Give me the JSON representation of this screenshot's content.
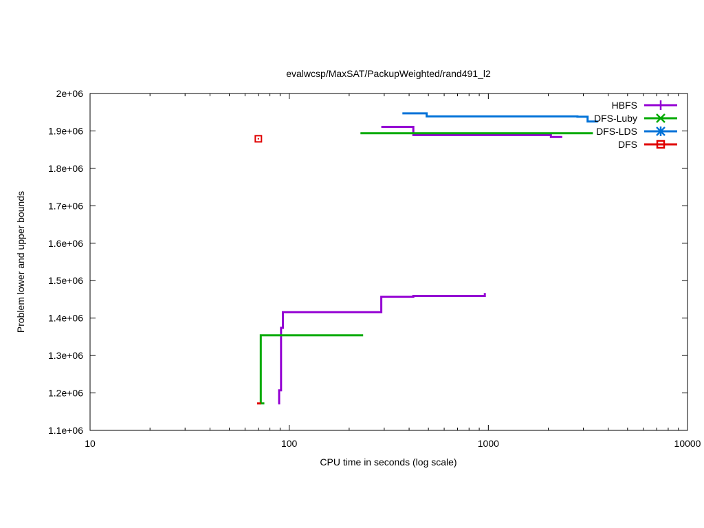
{
  "chart_data": {
    "type": "line",
    "title": "evalwcsp/MaxSAT/PackupWeighted/rand491_l2",
    "xlabel": "CPU time in seconds (log scale)",
    "ylabel": "Problem lower and upper bounds",
    "x_scale": "log",
    "xlim": [
      10,
      10000
    ],
    "ylim": [
      1100000,
      2000000
    ],
    "x_ticks": [
      10,
      100,
      1000,
      10000
    ],
    "x_tick_labels": [
      "10",
      "100",
      "1000",
      "10000"
    ],
    "y_ticks": [
      1100000,
      1200000,
      1300000,
      1400000,
      1500000,
      1600000,
      1700000,
      1800000,
      1900000,
      2000000
    ],
    "y_tick_labels": [
      "1.1e+06",
      "1.2e+06",
      "1.3e+06",
      "1.4e+06",
      "1.5e+06",
      "1.6e+06",
      "1.7e+06",
      "1.8e+06",
      "1.9e+06",
      "2e+06"
    ],
    "grid": false,
    "legend_position": "top-right",
    "series": [
      {
        "name": "HBFS",
        "color": "#9400d3",
        "marker": "plus",
        "lower": [
          [
            88,
            1172000
          ],
          [
            89,
            1172000
          ],
          [
            89,
            1207000
          ],
          [
            91,
            1207000
          ],
          [
            91,
            1374000
          ],
          [
            93,
            1374000
          ],
          [
            93,
            1416000
          ],
          [
            290,
            1416000
          ],
          [
            290,
            1457000
          ],
          [
            420,
            1457000
          ],
          [
            420,
            1459000
          ],
          [
            960,
            1459000
          ],
          [
            960,
            1467000
          ]
        ],
        "upper": [
          [
            290,
            1911000
          ],
          [
            420,
            1911000
          ],
          [
            420,
            1889000
          ],
          [
            2060,
            1889000
          ],
          [
            2060,
            1884000
          ],
          [
            2350,
            1884000
          ]
        ]
      },
      {
        "name": "DFS-Luby",
        "color": "#00aa00",
        "marker": "x",
        "lower": [
          [
            72,
            1172000
          ],
          [
            75,
            1172000
          ],
          [
            72,
            1172000
          ],
          [
            72,
            1354000
          ],
          [
            235,
            1354000
          ]
        ],
        "upper": [
          [
            228,
            1894000
          ],
          [
            3350,
            1894000
          ]
        ]
      },
      {
        "name": "DFS-LDS",
        "color": "#0072d8",
        "marker": "star",
        "lower": [],
        "upper": [
          [
            370,
            1947000
          ],
          [
            490,
            1947000
          ],
          [
            490,
            1939000
          ],
          [
            2800,
            1939000
          ],
          [
            2800,
            1938000
          ],
          [
            3150,
            1938000
          ],
          [
            3150,
            1925000
          ],
          [
            3550,
            1925000
          ]
        ]
      },
      {
        "name": "DFS",
        "color": "#e00000",
        "marker": "square",
        "lower": [
          [
            69,
            1172000
          ],
          [
            72,
            1172000
          ]
        ],
        "upper": [],
        "points": [
          [
            70,
            1879000
          ]
        ]
      }
    ]
  }
}
